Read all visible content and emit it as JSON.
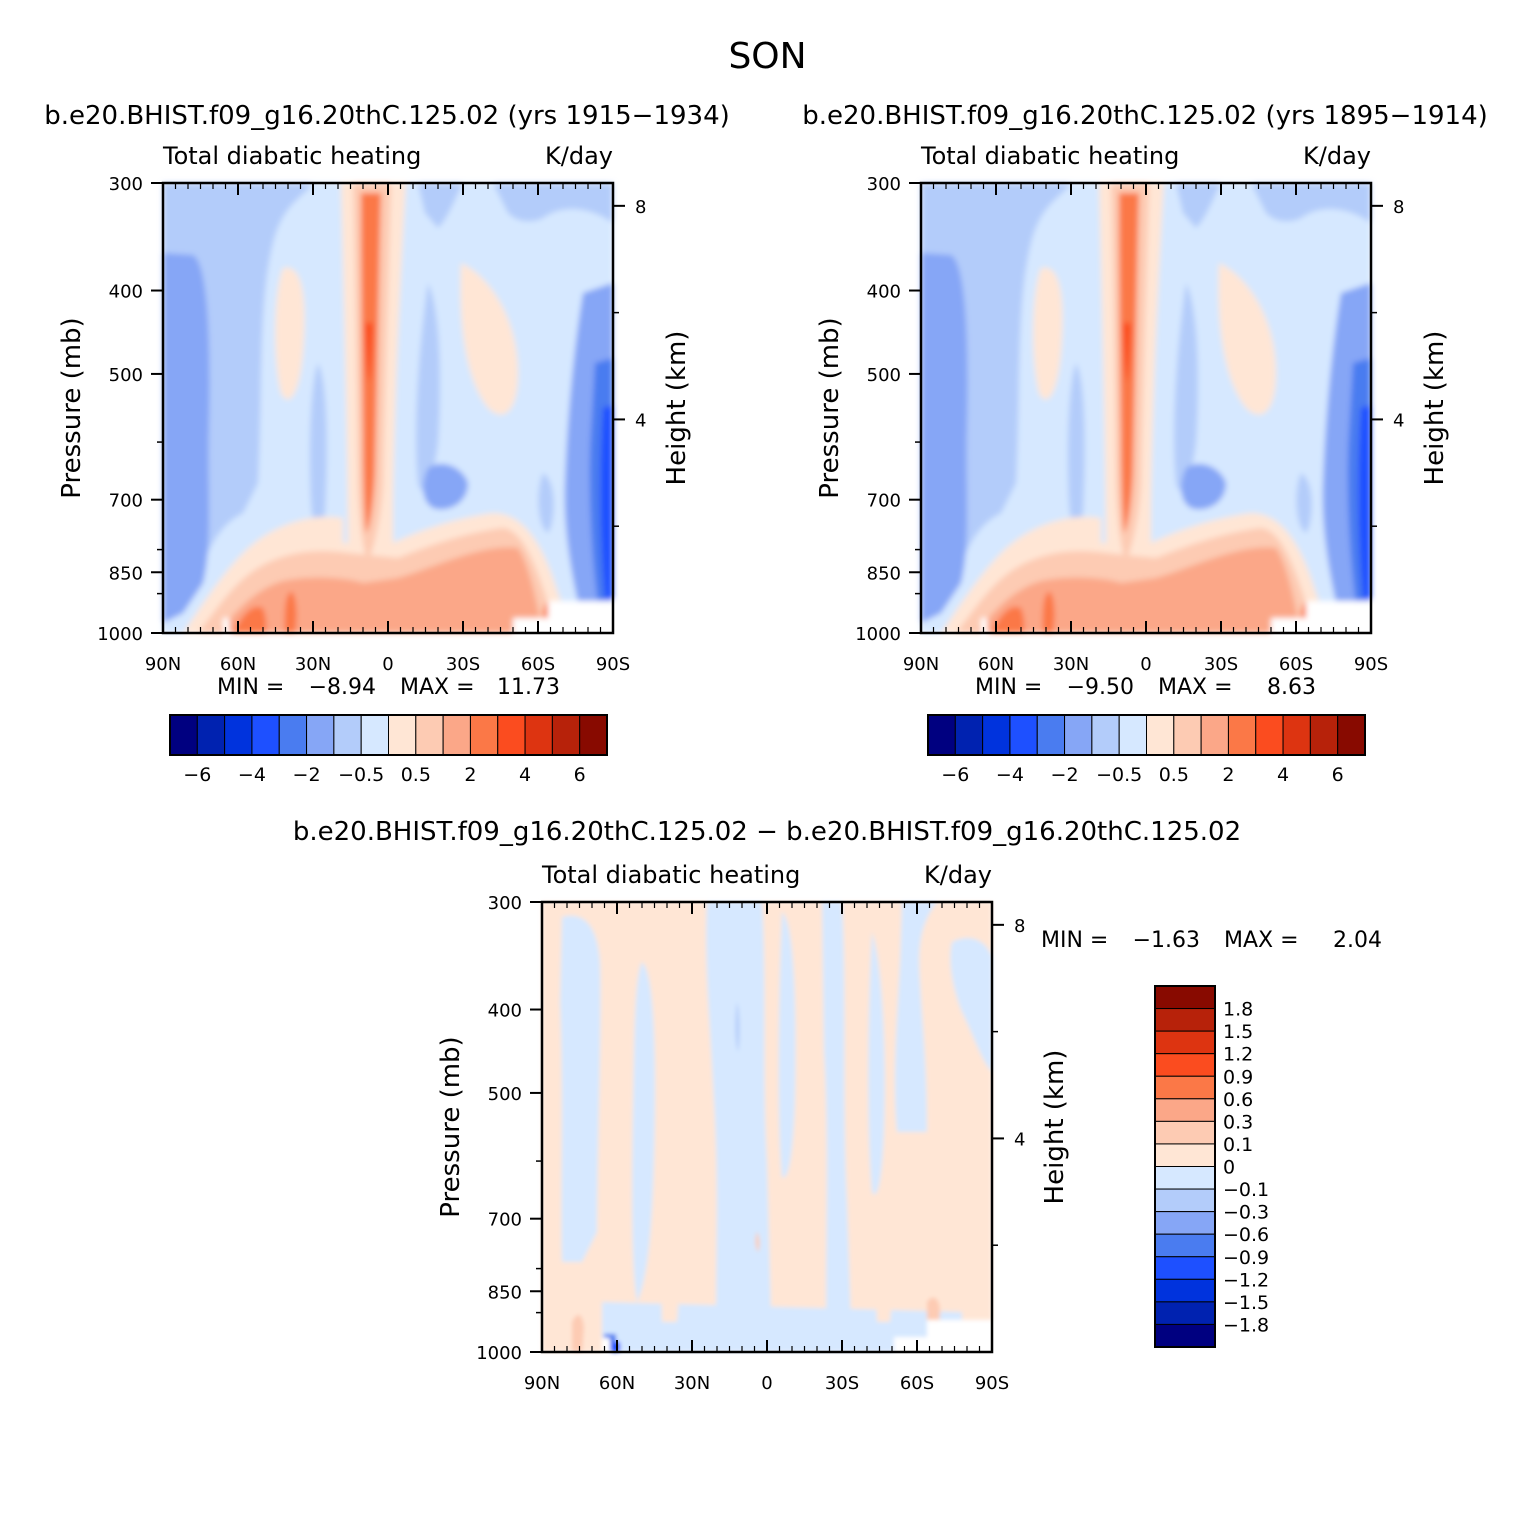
{
  "page": {
    "title": "SON"
  },
  "panels": [
    {
      "case_label": "b.e20.BHIST.f09_g16.20thC.125.02 (yrs 1915−1934)",
      "field_label": "Total diabatic heating",
      "units": "K/day",
      "y_label": "Pressure (mb)",
      "y2_label": "Height (km)",
      "y_ticks": [
        "300",
        "400",
        "500",
        "700",
        "850",
        "1000"
      ],
      "y2_ticks": [
        "8",
        "4"
      ],
      "x_ticks": [
        "90N",
        "60N",
        "30N",
        "0",
        "30S",
        "60S",
        "90S"
      ],
      "stats": {
        "min_label": "MIN =",
        "min": "−8.94",
        "max_label": "MAX =",
        "max": "11.73"
      },
      "colorbar_labels": [
        "−6",
        "−4",
        "−2",
        "−0.5",
        "0.5",
        "2",
        "4",
        "6"
      ]
    },
    {
      "case_label": "b.e20.BHIST.f09_g16.20thC.125.02 (yrs 1895−1914)",
      "field_label": "Total diabatic heating",
      "units": "K/day",
      "y_label": "Pressure (mb)",
      "y2_label": "Height (km)",
      "y_ticks": [
        "300",
        "400",
        "500",
        "700",
        "850",
        "1000"
      ],
      "y2_ticks": [
        "8",
        "4"
      ],
      "x_ticks": [
        "90N",
        "60N",
        "30N",
        "0",
        "30S",
        "60S",
        "90S"
      ],
      "stats": {
        "min_label": "MIN =",
        "min": "−9.50",
        "max_label": "MAX =",
        "max": "8.63"
      },
      "colorbar_labels": [
        "−6",
        "−4",
        "−2",
        "−0.5",
        "0.5",
        "2",
        "4",
        "6"
      ]
    }
  ],
  "diff_panel": {
    "case_label": "b.e20.BHIST.f09_g16.20thC.125.02 − b.e20.BHIST.f09_g16.20thC.125.02",
    "field_label": "Total diabatic heating",
    "units": "K/day",
    "y_label": "Pressure (mb)",
    "y2_label": "Height (km)",
    "y_ticks": [
      "300",
      "400",
      "500",
      "700",
      "850",
      "1000"
    ],
    "y2_ticks": [
      "8",
      "4"
    ],
    "x_ticks": [
      "90N",
      "60N",
      "30N",
      "0",
      "30S",
      "60S",
      "90S"
    ],
    "stats": {
      "min_label": "MIN =",
      "min": "−1.63",
      "max_label": "MAX =",
      "max": "2.04"
    },
    "colorbar_labels": [
      "1.8",
      "1.5",
      "1.2",
      "0.9",
      "0.6",
      "0.3",
      "0.1",
      "0",
      "−0.1",
      "−0.3",
      "−0.6",
      "−0.9",
      "−1.2",
      "−1.5",
      "−1.8"
    ]
  },
  "colors": {
    "scale": [
      "#000080",
      "#0022b0",
      "#0033dd",
      "#1e50ff",
      "#4a7cf0",
      "#86a6f6",
      "#b3ccfa",
      "#d6e8ff",
      "#ffe6d5",
      "#fdcbb3",
      "#fba788",
      "#fb7847",
      "#fb4c1f",
      "#dd3411",
      "#b7220a",
      "#880a00"
    ]
  },
  "chart_data": [
    {
      "type": "heatmap",
      "title": "Total diabatic heating",
      "subtitle": "b.e20.BHIST.f09_g16.20thC.125.02 (yrs 1915−1934)",
      "xlabel": "",
      "ylabel": "Pressure (mb)",
      "y2label": "Height (km)",
      "units": "K/day",
      "x_range": [
        90,
        -90
      ],
      "y_range_mb": [
        300,
        1000
      ],
      "y_scale": "log",
      "x_tick_values": [
        90,
        60,
        30,
        0,
        -30,
        -60,
        -90
      ],
      "y_tick_values": [
        300,
        400,
        500,
        700,
        850,
        1000
      ],
      "contour_levels": [
        -6,
        -5,
        -4,
        -3,
        -2,
        -1,
        -0.5,
        0,
        0.5,
        1,
        2,
        3,
        4,
        5,
        6
      ],
      "min": -8.94,
      "max": 11.73,
      "features": {
        "itcz_max_lat": 8,
        "itcz_max_mb": 500,
        "polar_cooling_lat": 80,
        "boundary_layer_heating_mb": 900
      }
    },
    {
      "type": "heatmap",
      "title": "Total diabatic heating",
      "subtitle": "b.e20.BHIST.f09_g16.20thC.125.02 (yrs 1895−1914)",
      "xlabel": "",
      "ylabel": "Pressure (mb)",
      "y2label": "Height (km)",
      "units": "K/day",
      "x_range": [
        90,
        -90
      ],
      "y_range_mb": [
        300,
        1000
      ],
      "y_scale": "log",
      "x_tick_values": [
        90,
        60,
        30,
        0,
        -30,
        -60,
        -90
      ],
      "y_tick_values": [
        300,
        400,
        500,
        700,
        850,
        1000
      ],
      "contour_levels": [
        -6,
        -5,
        -4,
        -3,
        -2,
        -1,
        -0.5,
        0,
        0.5,
        1,
        2,
        3,
        4,
        5,
        6
      ],
      "min": -9.5,
      "max": 8.63
    },
    {
      "type": "heatmap",
      "title": "Total diabatic heating",
      "subtitle": "b.e20.BHIST.f09_g16.20thC.125.02 − b.e20.BHIST.f09_g16.20thC.125.02",
      "xlabel": "",
      "ylabel": "Pressure (mb)",
      "y2label": "Height (km)",
      "units": "K/day",
      "x_range": [
        90,
        -90
      ],
      "y_range_mb": [
        300,
        1000
      ],
      "y_scale": "log",
      "contour_levels": [
        -1.8,
        -1.5,
        -1.2,
        -0.9,
        -0.6,
        -0.3,
        -0.1,
        0,
        0.1,
        0.3,
        0.6,
        0.9,
        1.2,
        1.5,
        1.8
      ],
      "min": -1.63,
      "max": 2.04
    }
  ]
}
